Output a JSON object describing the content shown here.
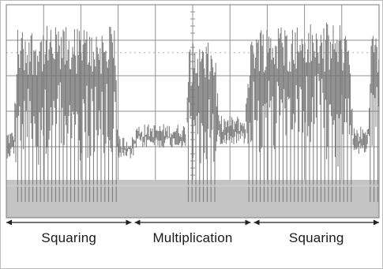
{
  "chart_data": {
    "type": "area",
    "title": "",
    "xlabel": "",
    "ylabel": "",
    "grid": true,
    "colors": {
      "trace": "#777777",
      "fill": "#c4c4c4",
      "grid": "#909090",
      "baseline": "#cfcfcf",
      "background": "#ffffff"
    },
    "segments": [
      {
        "label": "Squaring",
        "start": 0.0,
        "end": 0.34
      },
      {
        "label": "Multiplication",
        "start": 0.34,
        "end": 0.66
      },
      {
        "label": "Squaring",
        "start": 0.66,
        "end": 1.0
      }
    ],
    "envelope": [
      {
        "t": 0.0,
        "level": 0.28,
        "spread": 0.06
      },
      {
        "t": 0.02,
        "level": 0.28,
        "spread": 0.06
      },
      {
        "t": 0.03,
        "level": 0.78,
        "spread": 0.18
      },
      {
        "t": 0.29,
        "level": 0.78,
        "spread": 0.18
      },
      {
        "t": 0.3,
        "level": 0.25,
        "spread": 0.05
      },
      {
        "t": 0.34,
        "level": 0.25,
        "spread": 0.05
      },
      {
        "t": 0.35,
        "level": 0.32,
        "spread": 0.05
      },
      {
        "t": 0.48,
        "level": 0.32,
        "spread": 0.05
      },
      {
        "t": 0.49,
        "level": 0.7,
        "spread": 0.16
      },
      {
        "t": 0.56,
        "level": 0.7,
        "spread": 0.16
      },
      {
        "t": 0.57,
        "level": 0.36,
        "spread": 0.06
      },
      {
        "t": 0.64,
        "level": 0.36,
        "spread": 0.06
      },
      {
        "t": 0.66,
        "level": 0.8,
        "spread": 0.18
      },
      {
        "t": 0.92,
        "level": 0.8,
        "spread": 0.18
      },
      {
        "t": 0.93,
        "level": 0.3,
        "spread": 0.06
      },
      {
        "t": 0.97,
        "level": 0.3,
        "spread": 0.06
      },
      {
        "t": 0.98,
        "level": 0.76,
        "spread": 0.16
      },
      {
        "t": 1.0,
        "level": 0.76,
        "spread": 0.16
      }
    ]
  }
}
